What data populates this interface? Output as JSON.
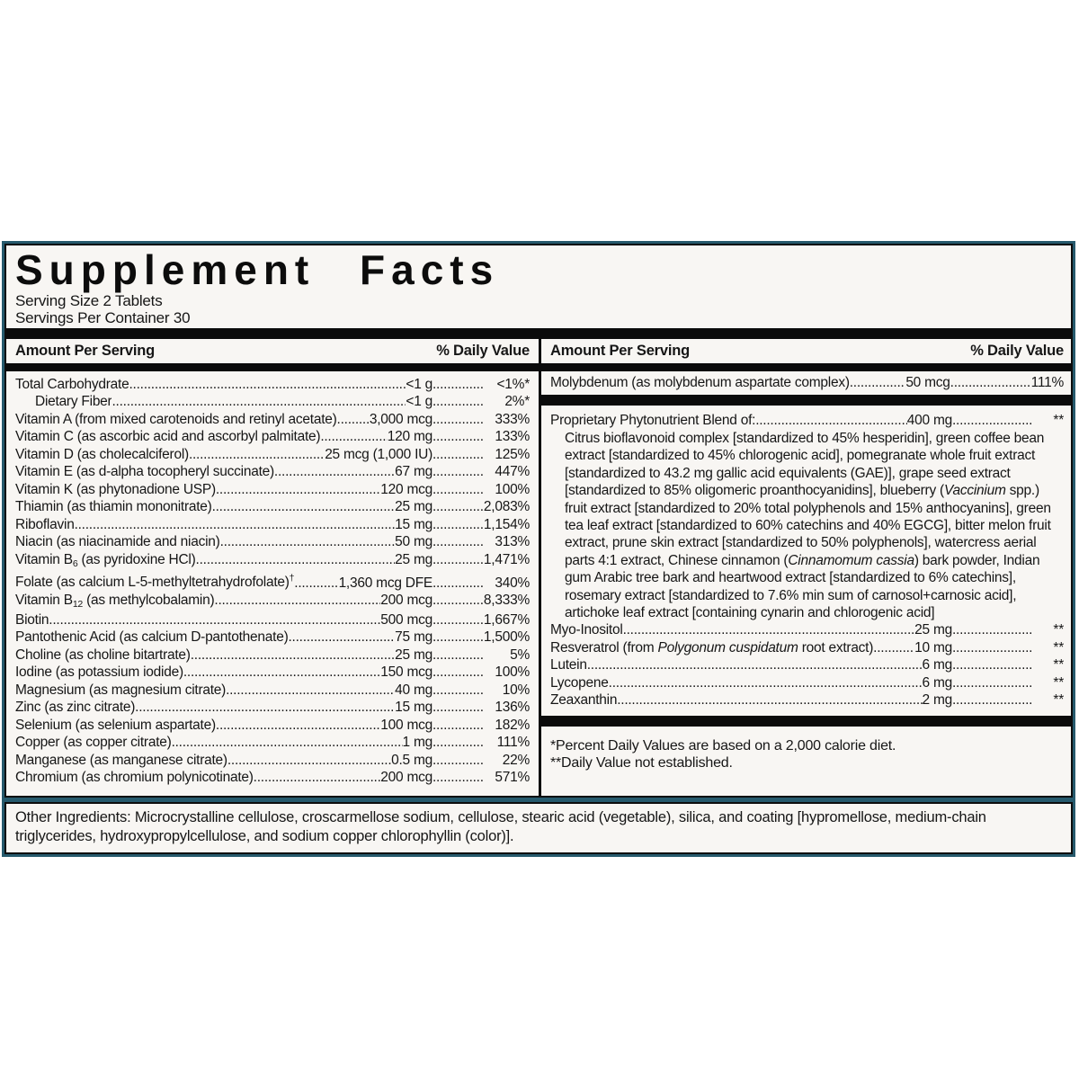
{
  "title": "Supplement Facts",
  "serving_size": "Serving Size 2 Tablets",
  "servings_per_container": "Servings Per Container 30",
  "column_headers": {
    "amount": "Amount Per Serving",
    "dv": "% Daily Value"
  },
  "left_rows": [
    {
      "segments": [
        {
          "t": "Total Carbohydrate"
        }
      ],
      "amount": "<1 g",
      "dv": "<1%*"
    },
    {
      "segments": [
        {
          "t": "Dietary Fiber"
        }
      ],
      "indent": true,
      "amount": "<1 g",
      "dv": "2%*"
    },
    {
      "segments": [
        {
          "t": "Vitamin A (from mixed carotenoids and retinyl acetate)"
        }
      ],
      "amount": "3,000 mcg",
      "dv": "333%"
    },
    {
      "segments": [
        {
          "t": "Vitamin C (as ascorbic acid and ascorbyl palmitate)"
        }
      ],
      "amount": "120 mg",
      "dv": "133%"
    },
    {
      "segments": [
        {
          "t": "Vitamin D (as cholecalciferol)"
        }
      ],
      "amount": "25 mcg (1,000 IU)",
      "dv": "125%"
    },
    {
      "segments": [
        {
          "t": "Vitamin E (as d-alpha tocopheryl succinate)"
        }
      ],
      "amount": "67 mg",
      "dv": "447%"
    },
    {
      "segments": [
        {
          "t": "Vitamin K (as phytonadione USP)"
        }
      ],
      "amount": "120 mcg",
      "dv": "100%"
    },
    {
      "segments": [
        {
          "t": "Thiamin (as thiamin mononitrate)"
        }
      ],
      "amount": "25 mg",
      "dv": "2,083%"
    },
    {
      "segments": [
        {
          "t": "Riboflavin"
        }
      ],
      "amount": "15 mg",
      "dv": "1,154%"
    },
    {
      "segments": [
        {
          "t": "Niacin (as niacinamide and niacin)"
        }
      ],
      "amount": "50 mg",
      "dv": "313%"
    },
    {
      "segments": [
        {
          "t": "Vitamin B"
        },
        {
          "t": "6",
          "s": "sub"
        },
        {
          "t": " (as pyridoxine HCl)"
        }
      ],
      "amount": "25 mg",
      "dv": "1,471%"
    },
    {
      "segments": [
        {
          "t": "Folate (as calcium L-5-methyltetrahydrofolate)"
        },
        {
          "t": "†",
          "s": "sup"
        }
      ],
      "amount": "1,360 mcg DFE",
      "dv": "340%"
    },
    {
      "segments": [
        {
          "t": "Vitamin B"
        },
        {
          "t": "12",
          "s": "sub"
        },
        {
          "t": " (as methylcobalamin)"
        }
      ],
      "amount": "200 mcg",
      "dv": "8,333%"
    },
    {
      "segments": [
        {
          "t": "Biotin"
        }
      ],
      "amount": "500 mcg",
      "dv": "1,667%"
    },
    {
      "segments": [
        {
          "t": "Pantothenic Acid (as calcium D-pantothenate)"
        }
      ],
      "amount": "75 mg",
      "dv": "1,500%"
    },
    {
      "segments": [
        {
          "t": "Choline (as choline bitartrate)"
        }
      ],
      "amount": "25 mg",
      "dv": "5%"
    },
    {
      "segments": [
        {
          "t": "Iodine (as potassium iodide)"
        }
      ],
      "amount": "150 mcg",
      "dv": "100%"
    },
    {
      "segments": [
        {
          "t": "Magnesium (as magnesium citrate)"
        }
      ],
      "amount": "40 mg",
      "dv": "10%"
    },
    {
      "segments": [
        {
          "t": "Zinc (as zinc citrate)"
        }
      ],
      "amount": "15 mg",
      "dv": "136%"
    },
    {
      "segments": [
        {
          "t": "Selenium (as selenium aspartate)"
        }
      ],
      "amount": "100 mcg",
      "dv": "182%"
    },
    {
      "segments": [
        {
          "t": "Copper (as copper citrate)"
        }
      ],
      "amount": "1 mg",
      "dv": "111%"
    },
    {
      "segments": [
        {
          "t": "Manganese (as manganese citrate)"
        }
      ],
      "amount": "0.5 mg",
      "dv": "22%"
    },
    {
      "segments": [
        {
          "t": "Chromium (as chromium polynicotinate)"
        }
      ],
      "amount": "200 mcg",
      "dv": "571%"
    }
  ],
  "right_top_rows": [
    {
      "segments": [
        {
          "t": "Molybdenum (as molybdenum aspartate complex)"
        }
      ],
      "amount": "50 mcg",
      "dv": "111%"
    }
  ],
  "blend_header": {
    "segments": [
      {
        "t": "Proprietary Phytonutrient Blend of:"
      }
    ],
    "amount": "400 mg",
    "dv": "**"
  },
  "blend_lines": [
    [
      {
        "t": "Citrus bioflavonoid complex [standardized to 45% hesperidin], green coffee bean"
      }
    ],
    [
      {
        "t": "extract [standardized to 45% chlorogenic acid], pomegranate whole fruit extract"
      }
    ],
    [
      {
        "t": "[standardized to 43.2 mg gallic acid equivalents (GAE)], grape seed extract"
      }
    ],
    [
      {
        "t": "[standardized to 85% oligomeric proanthocyanidins], blueberry ("
      },
      {
        "t": "Vaccinium",
        "s": "i"
      },
      {
        "t": " spp.)"
      }
    ],
    [
      {
        "t": "fruit extract [standardized to 20% total polyphenols and 15% anthocyanins], green"
      }
    ],
    [
      {
        "t": "tea leaf extract [standardized to 60% catechins and 40% EGCG], bitter melon fruit"
      }
    ],
    [
      {
        "t": "extract, prune skin extract [standardized to 50% polyphenols], watercress aerial"
      }
    ],
    [
      {
        "t": "parts 4:1 extract, Chinese cinnamon ("
      },
      {
        "t": "Cinnamomum cassia",
        "s": "i"
      },
      {
        "t": ") bark powder, Indian"
      }
    ],
    [
      {
        "t": "gum Arabic tree bark and heartwood extract [standardized to 6% catechins],"
      }
    ],
    [
      {
        "t": "rosemary extract [standardized to 7.6% min sum of carnosol+carnosic acid],"
      }
    ],
    [
      {
        "t": "artichoke leaf extract [containing cynarin and chlorogenic acid]"
      }
    ]
  ],
  "right_bottom_rows": [
    {
      "segments": [
        {
          "t": "Myo-Inositol"
        }
      ],
      "amount": "25 mg",
      "dv": "**"
    },
    {
      "segments": [
        {
          "t": "Resveratrol (from "
        },
        {
          "t": "Polygonum cuspidatum",
          "s": "i"
        },
        {
          "t": " root extract)"
        }
      ],
      "amount": "10 mg",
      "dv": "**"
    },
    {
      "segments": [
        {
          "t": "Lutein"
        }
      ],
      "amount": "6 mg",
      "dv": "**"
    },
    {
      "segments": [
        {
          "t": "Lycopene"
        }
      ],
      "amount": "6 mg",
      "dv": "**"
    },
    {
      "segments": [
        {
          "t": "Zeaxanthin"
        }
      ],
      "amount": "2 mg",
      "dv": "**"
    }
  ],
  "footnotes": [
    "*Percent Daily Values are based on a 2,000 calorie diet.",
    "**Daily Value not established."
  ],
  "other_ingredients": "Other Ingredients: Microcrystalline cellulose, croscarmellose sodium, cellulose, stearic acid (vegetable), silica, and coating [hypromellose, medium-chain triglycerides, hydroxypropylcellulose, and sodium copper chlorophyllin (color)].",
  "colors": {
    "frame_teal": "#265a6d",
    "bar_black": "#0b0b0b",
    "panel_bg": "#f8f6f3",
    "text": "#161616"
  }
}
